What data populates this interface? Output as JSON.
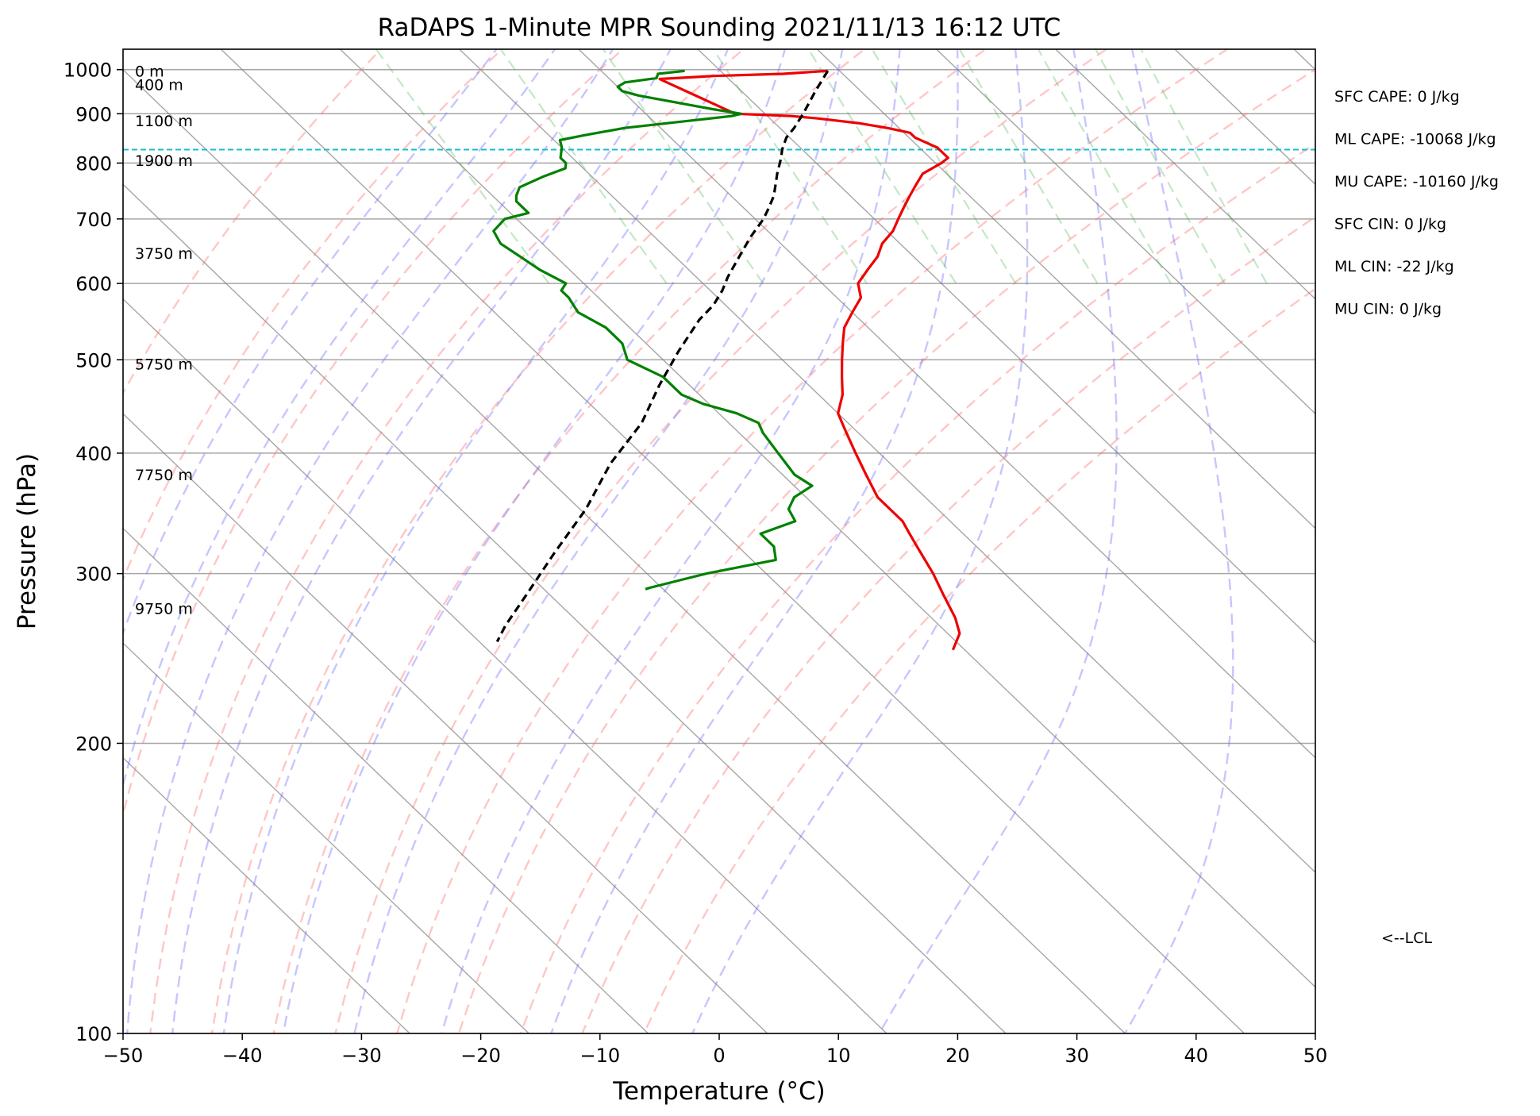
{
  "chart_data": {
    "type": "line",
    "title": "RaDAPS 1-Minute MPR Sounding 2021/11/13 16:12 UTC",
    "xlabel": "Temperature (°C)",
    "ylabel": "Pressure (hPa)",
    "xlim": [
      -50,
      50
    ],
    "ylim": [
      1050,
      100
    ],
    "y_scale": "log",
    "skew": "skew-T",
    "grid": true,
    "x_ticks": [
      -50,
      -40,
      -30,
      -20,
      -10,
      0,
      10,
      20,
      30,
      40,
      50
    ],
    "x_tick_labels": [
      "−50",
      "−40",
      "−30",
      "−20",
      "−10",
      "0",
      "10",
      "20",
      "30",
      "40",
      "50"
    ],
    "y_ticks": [
      100,
      200,
      300,
      400,
      500,
      600,
      700,
      800,
      900,
      1000
    ],
    "y_tick_labels": [
      "100",
      "200",
      "300",
      "400",
      "500",
      "600",
      "700",
      "800",
      "900",
      "1000"
    ],
    "series": [
      {
        "color": "#ee0000",
        "points": [
          [
            9,
            997
          ],
          [
            5,
            990
          ],
          [
            -1,
            985
          ],
          [
            -5.8,
            978
          ],
          [
            -5.5,
            970
          ],
          [
            -2.5,
            900
          ],
          [
            2,
            895
          ],
          [
            4,
            890
          ],
          [
            7,
            880
          ],
          [
            9,
            870
          ],
          [
            10.5,
            860
          ],
          [
            10.5,
            850
          ],
          [
            11,
            840
          ],
          [
            11.5,
            830
          ],
          [
            11.5,
            820
          ],
          [
            11.5,
            810
          ],
          [
            10.5,
            800
          ],
          [
            8,
            780
          ],
          [
            6.5,
            760
          ],
          [
            5,
            740
          ],
          [
            3.5,
            720
          ],
          [
            2,
            700
          ],
          [
            0.5,
            680
          ],
          [
            -1.5,
            660
          ],
          [
            -3,
            640
          ],
          [
            -5,
            620
          ],
          [
            -7,
            600
          ],
          [
            -8,
            580
          ],
          [
            -10,
            560
          ],
          [
            -12,
            540
          ],
          [
            -13.5,
            520
          ],
          [
            -15,
            500
          ],
          [
            -16.5,
            480
          ],
          [
            -18,
            460
          ],
          [
            -20,
            440
          ],
          [
            -21,
            420
          ],
          [
            -22,
            400
          ],
          [
            -23,
            380
          ],
          [
            -24,
            360
          ],
          [
            -24,
            350
          ],
          [
            -24,
            340
          ],
          [
            -24.5,
            330
          ],
          [
            -25,
            320
          ],
          [
            -26,
            300
          ],
          [
            -27,
            285
          ],
          [
            -28,
            270
          ],
          [
            -29,
            260
          ],
          [
            -31,
            250
          ]
        ]
      },
      {
        "color": "#008000",
        "points": [
          [
            -3,
            997
          ],
          [
            -5.5,
            990
          ],
          [
            -6,
            980
          ],
          [
            -9,
            970
          ],
          [
            -10,
            960
          ],
          [
            -10,
            950
          ],
          [
            -9,
            940
          ],
          [
            -4,
            910
          ],
          [
            -2,
            900
          ],
          [
            -3,
            895
          ],
          [
            -7,
            885
          ],
          [
            -13,
            870
          ],
          [
            -17,
            855
          ],
          [
            -19.5,
            845
          ],
          [
            -20,
            830
          ],
          [
            -20.5,
            820
          ],
          [
            -21,
            810
          ],
          [
            -21,
            800
          ],
          [
            -21.5,
            790
          ],
          [
            -24,
            775
          ],
          [
            -27,
            755
          ],
          [
            -28,
            740
          ],
          [
            -28.5,
            730
          ],
          [
            -28.5,
            710
          ],
          [
            -31,
            700
          ],
          [
            -33,
            680
          ],
          [
            -33.5,
            660
          ],
          [
            -33,
            640
          ],
          [
            -32.5,
            620
          ],
          [
            -31.5,
            600
          ],
          [
            -32.5,
            590
          ],
          [
            -32.5,
            580
          ],
          [
            -33,
            560
          ],
          [
            -32,
            540
          ],
          [
            -32,
            520
          ],
          [
            -33,
            500
          ],
          [
            -31.5,
            480
          ],
          [
            -31.5,
            460
          ],
          [
            -30.5,
            450
          ],
          [
            -28.5,
            440
          ],
          [
            -27.5,
            430
          ],
          [
            -28,
            420
          ],
          [
            -28.5,
            400
          ],
          [
            -29,
            380
          ],
          [
            -28.5,
            370
          ],
          [
            -31,
            360
          ],
          [
            -32.5,
            350
          ],
          [
            -33,
            340
          ],
          [
            -37,
            330
          ],
          [
            -37,
            320
          ],
          [
            -38,
            310
          ],
          [
            -45,
            300
          ],
          [
            -48,
            295
          ],
          [
            -51,
            290
          ],
          [
            -51.5,
            289
          ]
        ]
      },
      {
        "color": "#000000",
        "dashed": true,
        "points": [
          [
            9,
            997
          ],
          [
            6.2,
            950
          ],
          [
            3.2,
            900
          ],
          [
            1.2,
            870
          ],
          [
            -0.3,
            850
          ],
          [
            -1.7,
            826
          ],
          [
            -2.5,
            810
          ],
          [
            -4.2,
            780
          ],
          [
            -6.4,
            740
          ],
          [
            -7.8,
            720
          ],
          [
            -9.3,
            700
          ],
          [
            -12.0,
            670
          ],
          [
            -14.6,
            640
          ],
          [
            -17.3,
            610
          ],
          [
            -19.0,
            590
          ],
          [
            -21.0,
            570
          ],
          [
            -23.5,
            550
          ],
          [
            -28.0,
            510
          ],
          [
            -32.6,
            470
          ],
          [
            -37.3,
            430
          ],
          [
            -43.5,
            390
          ],
          [
            -49.5,
            350
          ],
          [
            -56.0,
            315
          ],
          [
            -62.0,
            285
          ],
          [
            -66.4,
            265
          ],
          [
            -68.5,
            255
          ]
        ]
      }
    ],
    "height_labels": [
      {
        "p": 997,
        "text": "0 m"
      },
      {
        "p": 965,
        "text": "400 m"
      },
      {
        "p": 885,
        "text": "1100 m"
      },
      {
        "p": 805,
        "text": "1900 m"
      },
      {
        "p": 645,
        "text": "3750 m"
      },
      {
        "p": 495,
        "text": "5750 m"
      },
      {
        "p": 380,
        "text": "7750 m"
      },
      {
        "p": 276,
        "text": "9750 m"
      }
    ],
    "lcl": {
      "pressure": 826,
      "label": "<--LCL",
      "color": "#17becf"
    },
    "annotations": [
      "SFC CAPE: 0 J/kg",
      "ML CAPE: -10068 J/kg",
      "MU CAPE: -10160 J/kg",
      "SFC CIN: 0 J/kg",
      "ML CIN: -22 J/kg",
      "MU CIN: 0 J/kg"
    ],
    "reference_lines": {
      "isotherms": {
        "color": "#808080",
        "start_values": [
          -110,
          -100,
          -90,
          -80,
          -70,
          -60,
          -50,
          -40,
          -30,
          -20,
          -10,
          0,
          10,
          20,
          30,
          40,
          50
        ]
      },
      "dry_adiabats": {
        "color": "#ff7070",
        "surface_values": [
          -30,
          -20,
          -10,
          0,
          10,
          20,
          30,
          40,
          50,
          60,
          70,
          80
        ]
      },
      "moist_adiabats": {
        "color": "#7070ff",
        "surface_values": [
          -20,
          -15,
          -10,
          -5,
          0,
          5,
          10,
          15,
          20,
          25,
          30,
          35
        ]
      },
      "mixing_ratio": {
        "color": "#3cb043",
        "values": [
          0.4,
          1,
          2,
          4,
          7,
          10,
          16,
          24,
          32,
          40
        ]
      }
    }
  }
}
